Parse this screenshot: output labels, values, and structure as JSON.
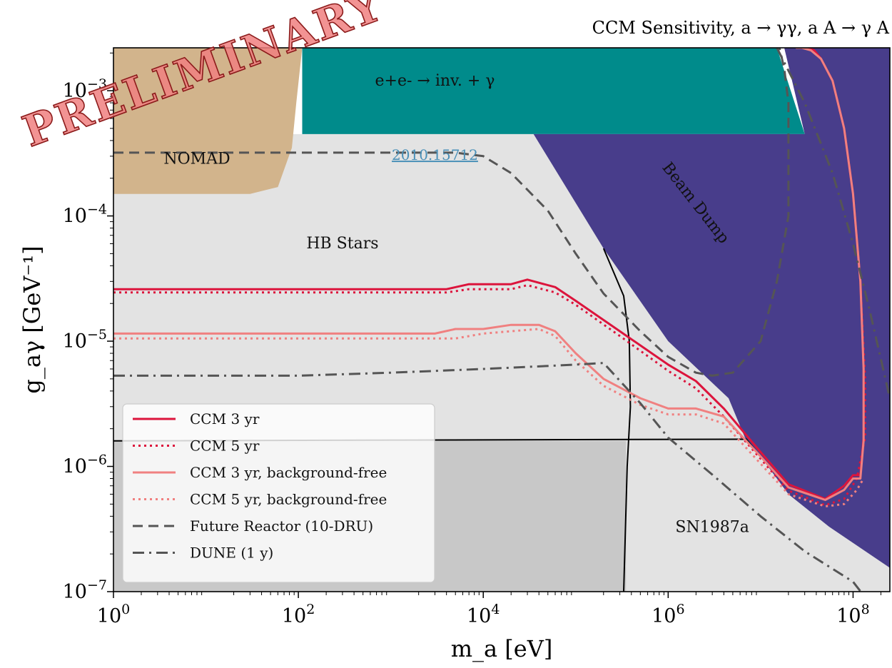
{
  "chart_data": {
    "type": "line",
    "title": "CCM Sensitivity, a → γγ, a A → γ A",
    "xlabel": "m_a [eV]",
    "ylabel": "g_aγ [GeV⁻¹]",
    "xscale": "log",
    "yscale": "log",
    "xlim": [
      1,
      250000000
    ],
    "ylim": [
      1e-07,
      0.0022
    ],
    "x_ticks": [
      {
        "base": "10",
        "exp": "0",
        "value": 1
      },
      {
        "base": "10",
        "exp": "2",
        "value": 100
      },
      {
        "base": "10",
        "exp": "4",
        "value": 10000
      },
      {
        "base": "10",
        "exp": "6",
        "value": 1000000
      },
      {
        "base": "10",
        "exp": "8",
        "value": 100000000
      }
    ],
    "y_ticks": [
      {
        "base": "10",
        "exp": "−7",
        "value": 1e-07
      },
      {
        "base": "10",
        "exp": "−6",
        "value": 1e-06
      },
      {
        "base": "10",
        "exp": "−5",
        "value": 1e-05
      },
      {
        "base": "10",
        "exp": "−4",
        "value": 0.0001
      },
      {
        "base": "10",
        "exp": "−3",
        "value": 0.001
      }
    ],
    "watermark": "PRELIMINARY",
    "regions": [
      {
        "name": "HB Stars",
        "color": "#e3e3e3",
        "label_at": [
          300,
          5.5e-05
        ],
        "polygon": [
          [
            1,
            1e-07
          ],
          [
            250000000,
            1e-07
          ],
          [
            250000000,
            0.00045
          ],
          [
            1,
            0.00045
          ]
        ]
      },
      {
        "name": "SN1987a",
        "color": "#c8c8c8",
        "label_at": [
          3000000,
          3e-07
        ],
        "polygon": [
          [
            1,
            1e-07
          ],
          [
            350000,
            1e-07
          ],
          [
            350000,
            1.6e-06
          ],
          [
            1,
            1.6e-06
          ]
        ]
      },
      {
        "name": "NOMAD",
        "color": "#d2b48c",
        "label_at": [
          8,
          0.00026
        ],
        "polygon": [
          [
            1,
            0.00015
          ],
          [
            30,
            0.00015
          ],
          [
            60,
            0.00017
          ],
          [
            85,
            0.00035
          ],
          [
            95,
            0.0008
          ],
          [
            110,
            0.0022
          ],
          [
            1,
            0.0022
          ]
        ]
      },
      {
        "name": "e+e- → inv. + γ",
        "color": "#008b8b",
        "label_at": [
          3000,
          0.0011
        ],
        "polygon": [
          [
            110,
            0.00045
          ],
          [
            30000000,
            0.00045
          ],
          [
            15000000,
            0.0022
          ],
          [
            110,
            0.0022
          ]
        ]
      },
      {
        "name": "Beam Dump",
        "color": "#483d8b",
        "label_at": [
          1800000,
          0.00012
        ],
        "polygon": [
          [
            35000,
            0.00045
          ],
          [
            200000,
            5.5e-05
          ],
          [
            1000000,
            1e-05
          ],
          [
            4500000,
            3.5e-06
          ],
          [
            7000000,
            1.6e-06
          ],
          [
            9500000,
            1.25e-06
          ],
          [
            12000000,
            1e-06
          ],
          [
            20000000,
            6e-07
          ],
          [
            55000000,
            3.3e-07
          ],
          [
            250000000,
            1.55e-07
          ],
          [
            250000000,
            0.0022
          ],
          [
            18000000,
            0.0022
          ],
          [
            30000000,
            0.00045
          ]
        ]
      }
    ],
    "reference_link": "2010.15712",
    "reference_at": [
      3000,
      0.00028
    ],
    "boundary_lines": [
      {
        "name": "SN1987a upper edge",
        "color": "#000000",
        "x": [
          1,
          7000000,
          9500000
        ],
        "y": [
          1.6e-06,
          1.65e-06,
          1.25e-06
        ]
      },
      {
        "name": "SN1987a vertical edge",
        "color": "#000000",
        "x": [
          200000,
          330000,
          380000,
          390000,
          360000,
          330000
        ],
        "y": [
          5.5e-05,
          2.3e-05,
          1e-05,
          3e-06,
          1e-06,
          1e-07
        ]
      }
    ],
    "series": [
      {
        "name": "CCM 3 yr",
        "color": "#dc143c",
        "style": "solid",
        "x": [
          1,
          4000,
          7000,
          20000,
          30000,
          60000,
          100000,
          300000,
          1000000,
          2000000,
          4000000,
          10000000,
          20000000,
          50000000,
          80000000,
          100000000,
          120000000,
          130000000,
          130000000,
          120000000,
          100000000,
          80000000,
          60000000,
          45000000,
          38000000,
          32000000,
          28000000,
          25000000
        ],
        "y": [
          2.6e-05,
          2.6e-05,
          2.85e-05,
          2.85e-05,
          3.1e-05,
          2.7e-05,
          2.1e-05,
          1.2e-05,
          6.5e-06,
          4.8e-06,
          2.9e-06,
          1.3e-06,
          7.2e-07,
          5.5e-07,
          7e-07,
          8.5e-07,
          8.5e-07,
          1.7e-06,
          6e-06,
          3e-05,
          0.00015,
          0.0005,
          0.0012,
          0.0018,
          0.0021,
          0.0022,
          0.0022,
          0.0022
        ]
      },
      {
        "name": "CCM 5 yr",
        "color": "#dc143c",
        "style": "dotted",
        "x": [
          1,
          4000,
          7000,
          20000,
          30000,
          60000,
          100000,
          300000,
          1000000,
          2000000,
          4000000,
          10000000,
          20000000,
          50000000,
          80000000,
          110000000,
          135000000,
          135000000,
          120000000,
          100000000,
          80000000,
          60000000,
          45000000,
          35000000,
          30000000
        ],
        "y": [
          2.45e-05,
          2.45e-05,
          2.6e-05,
          2.6e-05,
          2.8e-05,
          2.45e-05,
          1.95e-05,
          1.1e-05,
          5.8e-06,
          4.2e-06,
          2.5e-06,
          1.15e-06,
          6.4e-07,
          4.9e-07,
          5.5e-07,
          8e-07,
          1.7e-06,
          5e-06,
          3e-05,
          0.00015,
          0.0005,
          0.0012,
          0.0018,
          0.0021,
          0.0022
        ]
      },
      {
        "name": "CCM 3 yr, background-free",
        "color": "#f08080",
        "style": "solid",
        "x": [
          1,
          3000,
          5000,
          10000,
          20000,
          40000,
          60000,
          100000,
          200000,
          500000,
          1000000,
          2000000,
          4000000,
          10000000,
          20000000,
          50000000,
          80000000,
          100000000,
          120000000,
          130000000,
          130000000,
          120000000,
          100000000,
          80000000,
          60000000,
          45000000,
          35000000,
          28000000,
          24000000
        ],
        "y": [
          1.15e-05,
          1.15e-05,
          1.25e-05,
          1.25e-05,
          1.35e-05,
          1.35e-05,
          1.2e-05,
          8e-06,
          5e-06,
          3.5e-06,
          2.9e-06,
          2.9e-06,
          2.5e-06,
          1.2e-06,
          6.8e-07,
          5.4e-07,
          6.5e-07,
          8e-07,
          8e-07,
          1.6e-06,
          6e-06,
          3e-05,
          0.00015,
          0.0005,
          0.0012,
          0.0018,
          0.0021,
          0.0022,
          0.0022
        ]
      },
      {
        "name": "CCM 5 yr, background-free",
        "color": "#f08080",
        "style": "dotted",
        "x": [
          1,
          5000,
          10000,
          20000,
          40000,
          60000,
          100000,
          200000,
          500000,
          1000000,
          2000000,
          4000000,
          10000000,
          20000000,
          50000000,
          80000000,
          110000000,
          130000000
        ],
        "y": [
          1.05e-05,
          1.05e-05,
          1.15e-05,
          1.2e-05,
          1.25e-05,
          1.1e-05,
          7e-06,
          4.4e-06,
          3.1e-06,
          2.6e-06,
          2.6e-06,
          2.2e-06,
          1.05e-06,
          6e-07,
          4.8e-07,
          5e-07,
          6.5e-07,
          8e-07
        ]
      },
      {
        "name": "Future Reactor (10-DRU)",
        "color": "#555555",
        "style": "dashed",
        "x": [
          1,
          5000,
          10000,
          20000,
          50000,
          100000,
          200000,
          500000,
          1000000,
          2000000,
          3000000,
          5000000,
          10000000,
          15000000,
          20000000,
          20000000,
          18000000,
          16000000
        ],
        "y": [
          0.00032,
          0.00032,
          0.0003,
          0.00022,
          0.00011,
          5e-05,
          2.4e-05,
          1.2e-05,
          7.5e-06,
          5.6e-06,
          5.3e-06,
          5.6e-06,
          1e-05,
          3e-05,
          0.0001,
          0.0008,
          0.0015,
          0.0022
        ]
      },
      {
        "name": "DUNE (1 y)",
        "color": "#555555",
        "style": "dashdot",
        "x": [
          1,
          100,
          1000,
          10000,
          100000,
          200000,
          500000,
          1000000,
          3000000,
          10000000,
          30000000,
          100000000,
          250000000
        ],
        "y": [
          5.3e-06,
          5.3e-06,
          5.6e-06,
          6e-06,
          6.5e-06,
          6.7e-06,
          3.2e-06,
          1.7e-06,
          8.6e-07,
          4e-07,
          2.1e-07,
          1.2e-07,
          5e-08
        ]
      },
      {
        "name": "DUNE (1 y) upper",
        "color": "#555555",
        "style": "dashdot",
        "legend": false,
        "x": [
          15000000,
          30000000,
          60000000,
          100000000,
          150000000,
          250000000
        ],
        "y": [
          0.0022,
          0.0008,
          0.00022,
          6e-05,
          1.8e-05,
          3.5e-06
        ]
      }
    ],
    "legend": {
      "placement": "bottom-left",
      "entries": [
        {
          "label": "CCM 3 yr",
          "color": "#dc143c",
          "style": "solid"
        },
        {
          "label": "CCM 5 yr",
          "color": "#dc143c",
          "style": "dotted"
        },
        {
          "label": "CCM 3 yr, background-free",
          "color": "#f08080",
          "style": "solid"
        },
        {
          "label": "CCM 5 yr, background-free",
          "color": "#f08080",
          "style": "dotted"
        },
        {
          "label": "Future Reactor (10-DRU)",
          "color": "#555555",
          "style": "dashed"
        },
        {
          "label": "DUNE (1 y)",
          "color": "#555555",
          "style": "dashdot"
        }
      ]
    },
    "grid": false
  }
}
